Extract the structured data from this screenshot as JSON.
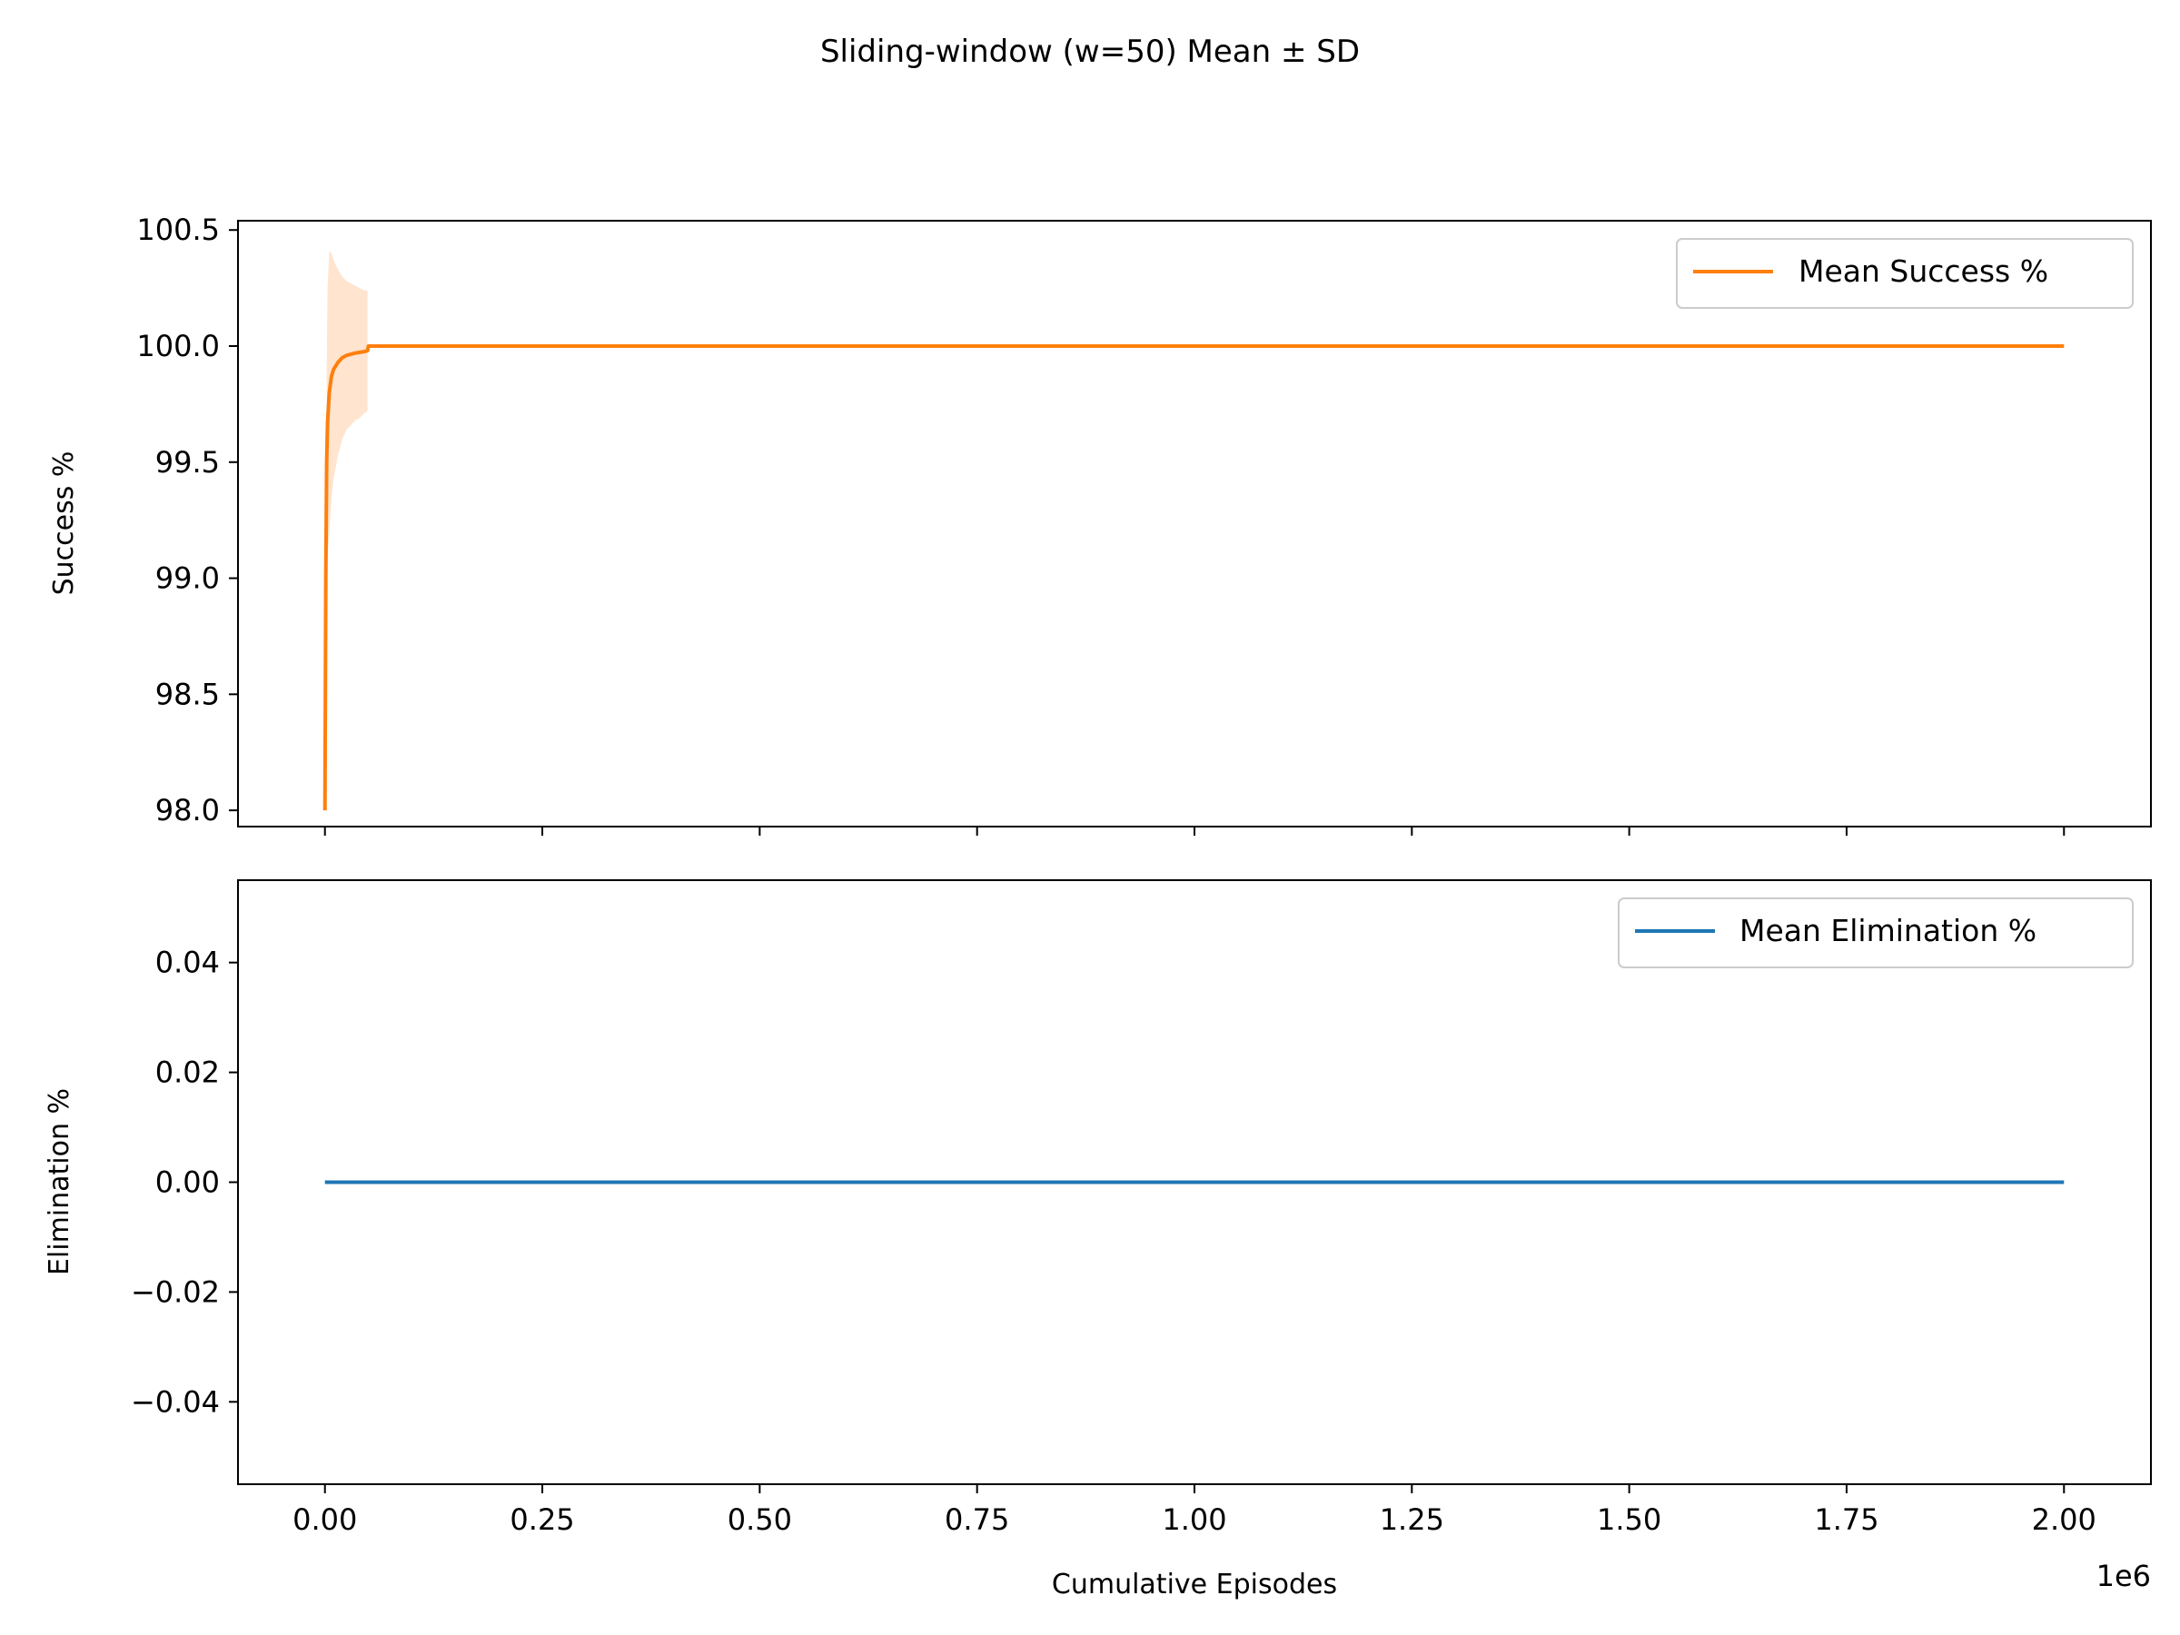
{
  "figure": {
    "suptitle": "Sliding-window (w=50) Mean ± SD"
  },
  "chart_data": [
    {
      "type": "line",
      "ylabel": "Success %",
      "xlabel": "",
      "xlim": [
        -100000,
        2100000
      ],
      "ylim": [
        97.93,
        100.54
      ],
      "x_ticks": [
        0,
        250000,
        500000,
        750000,
        1000000,
        1250000,
        1500000,
        1750000,
        2000000
      ],
      "x_tick_labels_visible": false,
      "y_ticks": [
        98.0,
        98.5,
        99.0,
        99.5,
        100.0,
        100.5
      ],
      "y_tick_labels": [
        "98.0",
        "98.5",
        "99.0",
        "99.5",
        "100.0",
        "100.5"
      ],
      "grid": false,
      "legend": {
        "position": "top-right",
        "entries": [
          "Mean Success %"
        ]
      },
      "series": [
        {
          "name": "Mean Success %",
          "color": "#ff7f0e",
          "x": [
            0,
            1000,
            2000,
            3000,
            5000,
            7500,
            10000,
            15000,
            20000,
            25000,
            30000,
            35000,
            40000,
            45000,
            49000,
            50000,
            51000,
            100000,
            500000,
            1000000,
            1500000,
            2000000
          ],
          "y": [
            98.0,
            99.0,
            99.5,
            99.67,
            99.8,
            99.87,
            99.9,
            99.93,
            99.95,
            99.96,
            99.965,
            99.97,
            99.973,
            99.976,
            99.98,
            100.0,
            100.0,
            100.0,
            100.0,
            100.0,
            100.0,
            100.0
          ],
          "band": {
            "x": [
              2000,
              3000,
              5000,
              7500,
              10000,
              15000,
              20000,
              25000,
              30000,
              35000,
              40000,
              45000,
              49000
            ],
            "upper": [
              99.9,
              100.25,
              100.41,
              100.4,
              100.37,
              100.33,
              100.3,
              100.28,
              100.27,
              100.26,
              100.25,
              100.24,
              100.24
            ],
            "lower": [
              99.1,
              99.09,
              99.19,
              99.34,
              99.43,
              99.53,
              99.6,
              99.64,
              99.66,
              99.68,
              99.69,
              99.71,
              99.72
            ]
          }
        }
      ]
    },
    {
      "type": "line",
      "ylabel": "Elimination %",
      "xlabel": "Cumulative Episodes",
      "x_offset_label": "1e6",
      "xlim": [
        -100000,
        2100000
      ],
      "ylim": [
        -0.055,
        0.055
      ],
      "x_ticks": [
        0,
        250000,
        500000,
        750000,
        1000000,
        1250000,
        1500000,
        1750000,
        2000000
      ],
      "x_tick_labels": [
        "0.00",
        "0.25",
        "0.50",
        "0.75",
        "1.00",
        "1.25",
        "1.50",
        "1.75",
        "2.00"
      ],
      "y_ticks": [
        -0.04,
        -0.02,
        0.0,
        0.02,
        0.04
      ],
      "y_tick_labels": [
        "−0.04",
        "−0.02",
        "0.00",
        "0.02",
        "0.04"
      ],
      "grid": false,
      "legend": {
        "position": "top-right",
        "entries": [
          "Mean Elimination %"
        ]
      },
      "series": [
        {
          "name": "Mean Elimination %",
          "color": "#1f77b4",
          "x": [
            0,
            2000000
          ],
          "y": [
            0.0,
            0.0
          ]
        }
      ]
    }
  ]
}
